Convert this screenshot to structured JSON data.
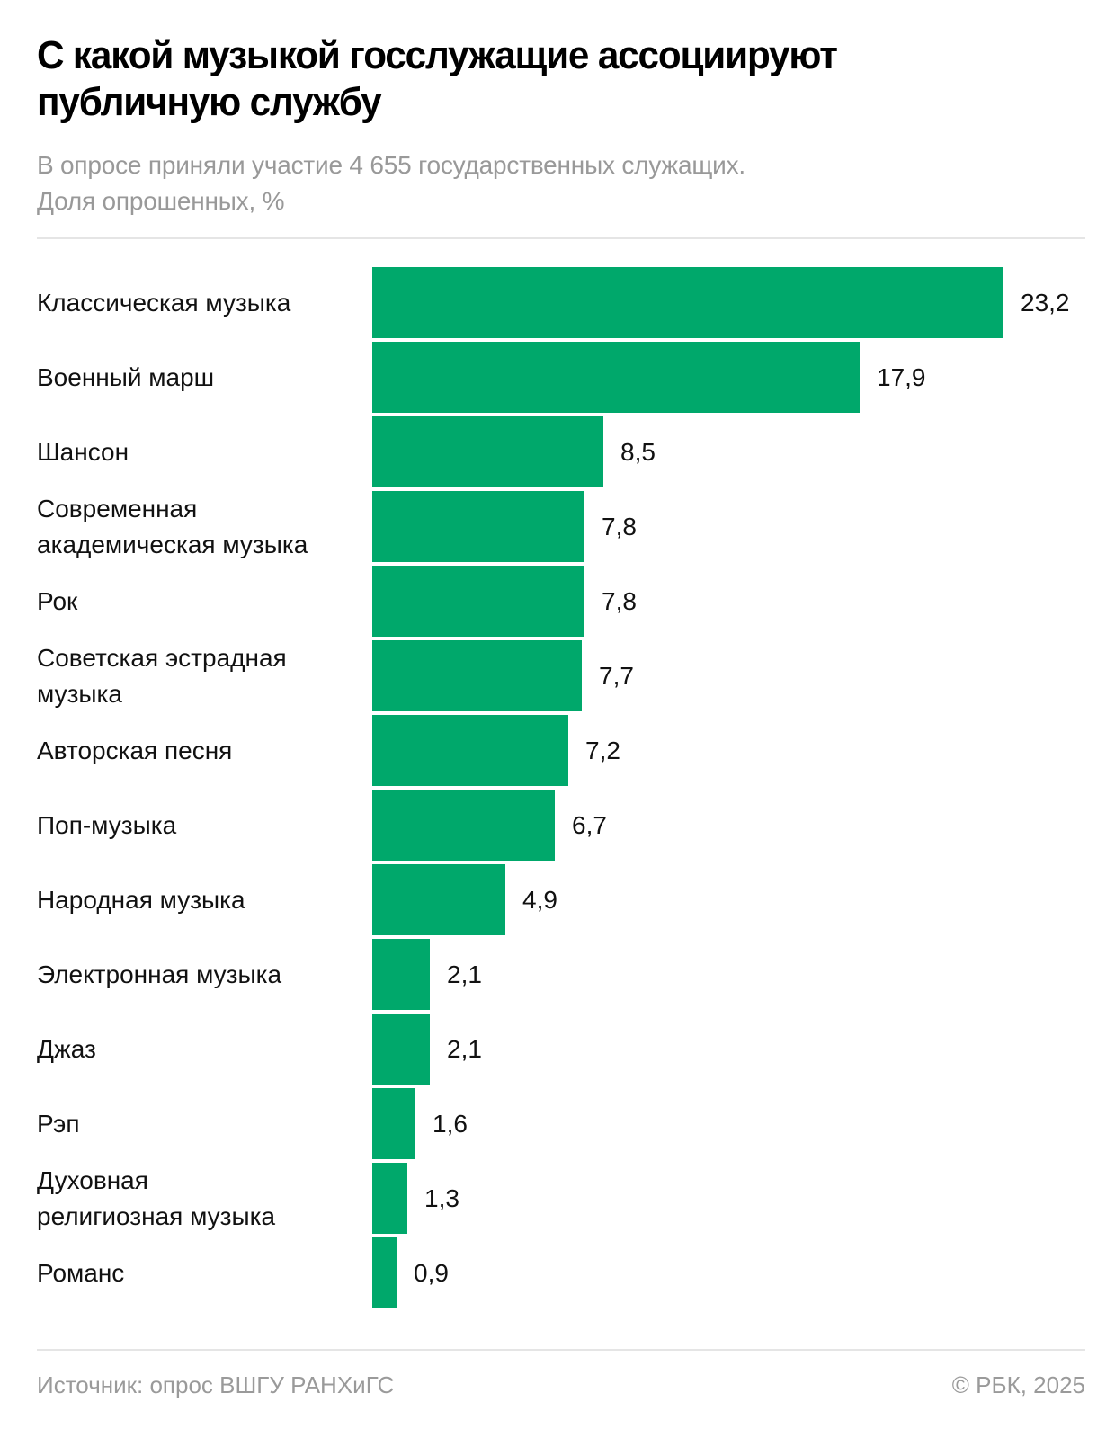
{
  "header": {
    "title": "С какой музыкой госслужащие ассоциируют публичную службу",
    "subtitle_line1": "В опросе приняли участие 4 655 государственных служащих.",
    "subtitle_line2": "Доля опрошенных, %"
  },
  "footer": {
    "source": "Источник: опрос ВШГУ РАНХиГС",
    "copyright": "© РБК, 2025"
  },
  "colors": {
    "bar": "#00a86b"
  },
  "chart_data": {
    "type": "bar",
    "orientation": "horizontal",
    "title": "С какой музыкой госслужащие ассоциируют публичную службу",
    "subtitle": "В опросе приняли участие 4 655 государственных служащих. Доля опрошенных, %",
    "xlabel": "",
    "ylabel": "",
    "unit": "%",
    "grid": false,
    "legend": "none",
    "xlim": [
      0,
      23.2
    ],
    "categories": [
      "Классическая музыка",
      "Военный марш",
      "Шансон",
      "Современная академическая музыка",
      "Рок",
      "Советская эстрадная музыка",
      "Авторская песня",
      "Поп-музыка",
      "Народная музыка",
      "Электронная музыка",
      "Джаз",
      "Рэп",
      "Духовная религиозная музыка",
      "Романс"
    ],
    "category_lines": [
      [
        "Классическая музыка"
      ],
      [
        "Военный марш"
      ],
      [
        "Шансон"
      ],
      [
        "Современная",
        "академическая музыка"
      ],
      [
        "Рок"
      ],
      [
        "Советская эстрадная",
        "музыка"
      ],
      [
        "Авторская песня"
      ],
      [
        "Поп-музыка"
      ],
      [
        "Народная музыка"
      ],
      [
        "Электронная музыка"
      ],
      [
        "Джаз"
      ],
      [
        "Рэп"
      ],
      [
        "Духовная",
        "религиозная музыка"
      ],
      [
        "Романс"
      ]
    ],
    "values": [
      23.2,
      17.9,
      8.5,
      7.8,
      7.8,
      7.7,
      7.2,
      6.7,
      4.9,
      2.1,
      2.1,
      1.6,
      1.3,
      0.9
    ],
    "value_labels": [
      "23,2",
      "17,9",
      "8,5",
      "7,8",
      "7,8",
      "7,7",
      "7,2",
      "6,7",
      "4,9",
      "2,1",
      "2,1",
      "1,6",
      "1,3",
      "0,9"
    ],
    "source": "Источник: опрос ВШГУ РАНХиГС"
  }
}
